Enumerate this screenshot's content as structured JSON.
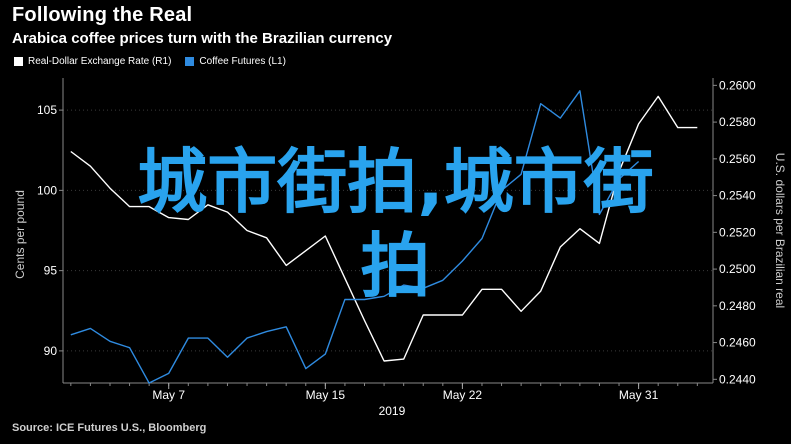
{
  "header": {
    "title": "Following the Real",
    "subtitle": "Arabica coffee prices turn with the Brazilian currency"
  },
  "legend": [
    {
      "label": "Real-Dollar Exchange Rate (R1)",
      "color": "#ffffff"
    },
    {
      "label": "Coffee Futures (L1)",
      "color": "#2f8be0"
    }
  ],
  "axes": {
    "left_label": "Cents per pound",
    "right_label": "U.S. dollars per Brazilian real",
    "x_title": "2019"
  },
  "overlay_text": {
    "line1": "城市街拍,城市街",
    "line2": "拍"
  },
  "source": "Source: ICE Futures U.S., Bloomberg",
  "chart_data": {
    "type": "line",
    "x_ticks": [
      {
        "label": "May 7",
        "day": 7
      },
      {
        "label": "May 15",
        "day": 15
      },
      {
        "label": "May 22",
        "day": 22
      },
      {
        "label": "May 31",
        "day": 31
      }
    ],
    "left_axis": {
      "ticks": [
        "105",
        "100",
        "95",
        "90"
      ],
      "range": [
        88,
        107
      ]
    },
    "right_axis": {
      "ticks": [
        "0.2600",
        "0.2580",
        "0.2560",
        "0.2540",
        "0.2520",
        "0.2500",
        "0.2480",
        "0.2460",
        "0.2440"
      ],
      "range": [
        0.2438,
        0.2604
      ]
    },
    "series": [
      {
        "name": "Real-Dollar Exchange Rate (R1)",
        "axis": "right",
        "color": "#ffffff",
        "points": [
          [
            2,
            0.2564
          ],
          [
            3,
            0.2556
          ],
          [
            4,
            0.2544
          ],
          [
            5,
            0.2534
          ],
          [
            6,
            0.2534
          ],
          [
            7,
            0.2528
          ],
          [
            8,
            0.2527
          ],
          [
            9,
            0.2535
          ],
          [
            10,
            0.2531
          ],
          [
            11,
            0.2521
          ],
          [
            12,
            0.2517
          ],
          [
            13,
            0.2502
          ],
          [
            14,
            0.251
          ],
          [
            15,
            0.2518
          ],
          [
            16,
            0.2495
          ],
          [
            17,
            0.2472
          ],
          [
            18,
            0.245
          ],
          [
            19,
            0.2451
          ],
          [
            20,
            0.2475
          ],
          [
            21,
            0.2475
          ],
          [
            22,
            0.2475
          ],
          [
            23,
            0.2489
          ],
          [
            24,
            0.2489
          ],
          [
            25,
            0.2477
          ],
          [
            26,
            0.2488
          ],
          [
            27,
            0.2512
          ],
          [
            28,
            0.2522
          ],
          [
            29,
            0.2514
          ],
          [
            30,
            0.2553
          ],
          [
            31,
            0.2579
          ],
          [
            32,
            0.2594
          ],
          [
            33,
            0.2577
          ],
          [
            34,
            0.2577
          ]
        ]
      },
      {
        "name": "Coffee Futures (L1)",
        "axis": "left",
        "color": "#2f8be0",
        "points": [
          [
            2,
            91.0
          ],
          [
            3,
            91.4
          ],
          [
            4,
            90.6
          ],
          [
            5,
            90.2
          ],
          [
            6,
            88.0
          ],
          [
            7,
            88.6
          ],
          [
            8,
            90.8
          ],
          [
            9,
            90.8
          ],
          [
            10,
            89.6
          ],
          [
            11,
            90.8
          ],
          [
            12,
            91.2
          ],
          [
            13,
            91.5
          ],
          [
            14,
            88.9
          ],
          [
            15,
            89.8
          ],
          [
            16,
            93.2
          ],
          [
            17,
            93.2
          ],
          [
            18,
            93.4
          ],
          [
            19,
            94.1
          ],
          [
            20,
            93.9
          ],
          [
            21,
            94.4
          ],
          [
            22,
            95.6
          ],
          [
            23,
            97.0
          ],
          [
            24,
            100.0
          ],
          [
            25,
            101.0
          ],
          [
            26,
            105.4
          ],
          [
            27,
            104.5
          ],
          [
            28,
            106.2
          ],
          [
            29,
            98.5
          ],
          [
            30,
            100.7
          ],
          [
            31,
            101.8
          ]
        ]
      }
    ]
  }
}
